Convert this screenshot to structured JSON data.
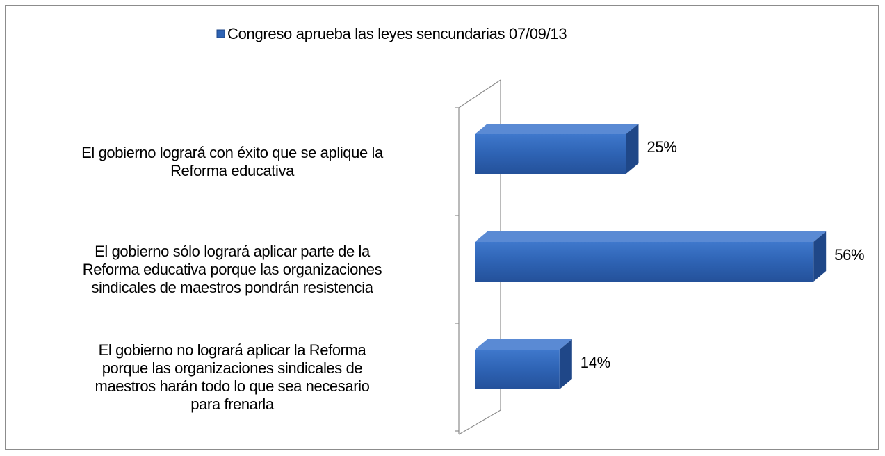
{
  "chart_data": {
    "type": "bar",
    "orientation": "horizontal",
    "categories": [
      "El gobierno logrará con éxito que se aplique la\nReforma educativa",
      "El gobierno sólo logrará aplicar parte de la\nReforma educativa porque las organizaciones\nsindicales de maestros pondrán resistencia",
      "El gobierno no logrará aplicar la Reforma\nporque las organizaciones sindicales de\nmaestros harán todo lo que sea necesario\npara frenarla"
    ],
    "series": [
      {
        "name": "Congreso aprueba las leyes sencundarias 07/09/13",
        "color": "#2e63b4",
        "values": [
          25,
          56,
          14
        ],
        "value_labels": [
          "25%",
          "56%",
          "14%"
        ]
      }
    ],
    "legend": "top"
  }
}
